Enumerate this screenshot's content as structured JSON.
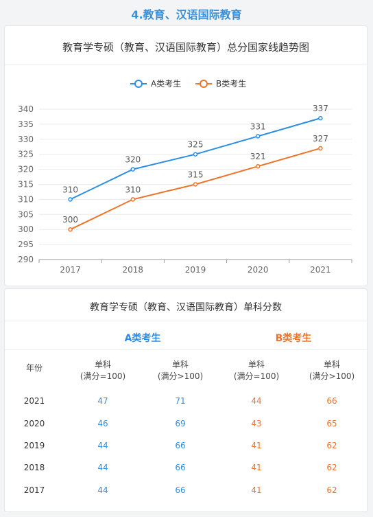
{
  "section_title": "4.教育、汉语国际教育",
  "chart_data": {
    "type": "line",
    "title": "教育学专硕（教育、汉语国际教育）总分国家线趋势图",
    "categories": [
      "2017",
      "2018",
      "2019",
      "2020",
      "2021"
    ],
    "series": [
      {
        "name": "A类考生",
        "values": [
          310,
          320,
          325,
          331,
          337
        ],
        "color": "#2b8ee6"
      },
      {
        "name": "B类考生",
        "values": [
          300,
          310,
          315,
          321,
          327
        ],
        "color": "#f0732a"
      }
    ],
    "ylim": [
      290,
      340
    ],
    "yticks": [
      290,
      295,
      300,
      305,
      310,
      315,
      320,
      325,
      330,
      335,
      340
    ],
    "legend": "top-center",
    "grid": true
  },
  "table": {
    "title": "教育学专硕（教育、汉语国际教育）单科分数",
    "group_a": "A类考生",
    "group_b": "B类考生",
    "year_header": "年份",
    "col_headers": [
      {
        "line1": "单科",
        "line2": "(满分=100)"
      },
      {
        "line1": "单科",
        "line2": "(满分>100)"
      },
      {
        "line1": "单科",
        "line2": "(满分=100)"
      },
      {
        "line1": "单科",
        "line2": "(满分>100)"
      }
    ],
    "rows": [
      {
        "year": "2021",
        "a1": "47",
        "a2": "71",
        "b1": "44",
        "b2": "66"
      },
      {
        "year": "2020",
        "a1": "46",
        "a2": "69",
        "b1": "43",
        "b2": "65"
      },
      {
        "year": "2019",
        "a1": "44",
        "a2": "66",
        "b1": "41",
        "b2": "62"
      },
      {
        "year": "2018",
        "a1": "44",
        "a2": "66",
        "b1": "41",
        "b2": "62"
      },
      {
        "year": "2017",
        "a1": "44",
        "a2": "66",
        "b1": "41",
        "b2": "62"
      }
    ]
  }
}
